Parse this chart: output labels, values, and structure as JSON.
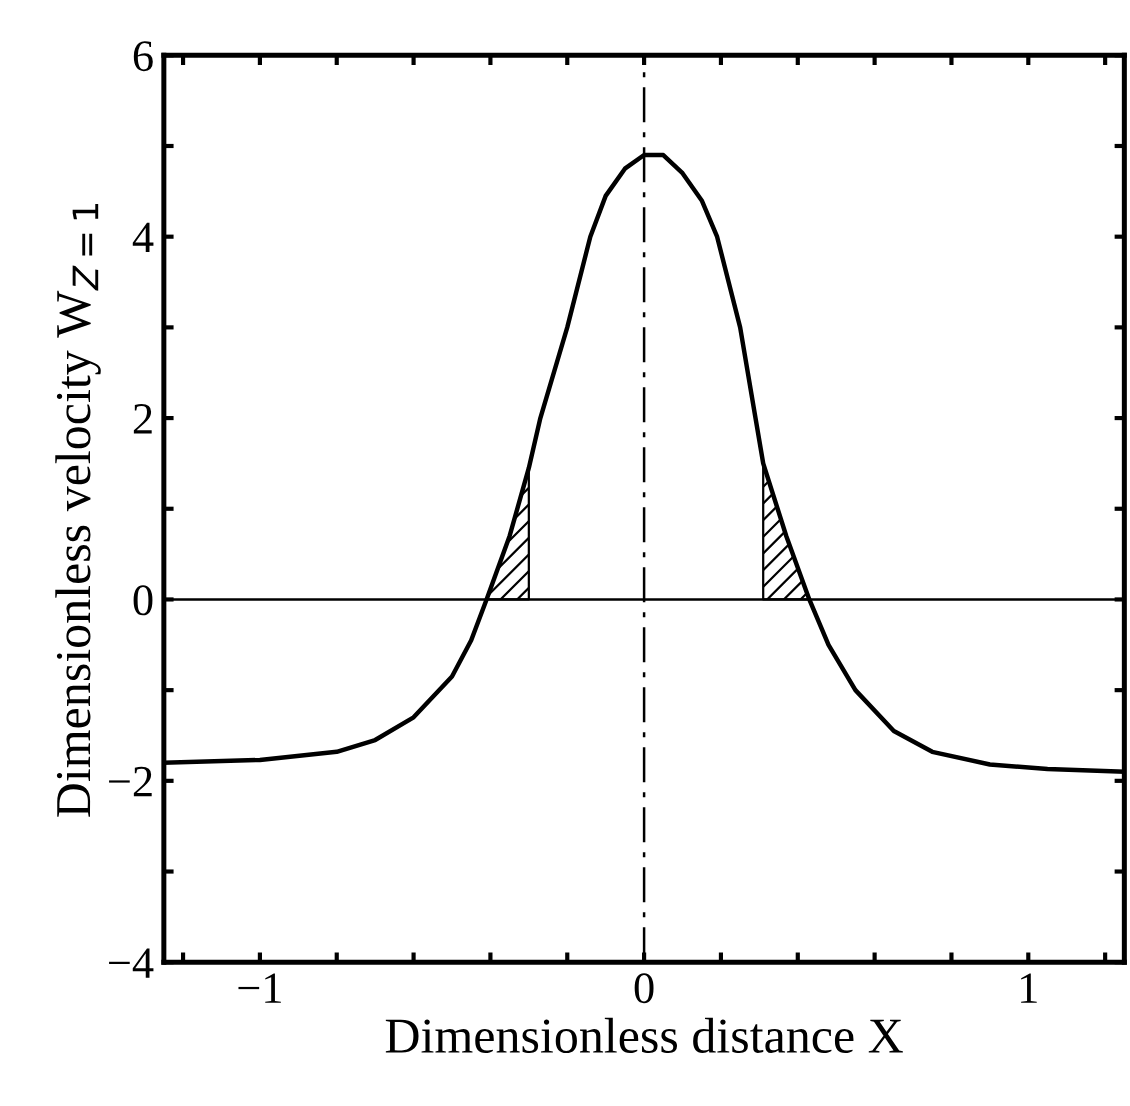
{
  "chart_data": {
    "type": "line",
    "xlabel": "Dimensionless distance X",
    "ylabel": "Dimensionless velocity W$_{Z=1}$",
    "xlim": [
      -1.25,
      1.25
    ],
    "ylim": [
      -4,
      6
    ],
    "xticks": [
      {
        "value": -1.2,
        "label": null
      },
      -1,
      {
        "value": -0.8,
        "label": null
      },
      {
        "value": -0.6,
        "label": null
      },
      {
        "value": -0.4,
        "label": null
      },
      {
        "value": -0.2,
        "label": null
      },
      0,
      {
        "value": 0.2,
        "label": null
      },
      {
        "value": 0.4,
        "label": null
      },
      {
        "value": 0.6,
        "label": null
      },
      {
        "value": 0.8,
        "label": null
      },
      1,
      {
        "value": 1.2,
        "label": null
      }
    ],
    "yticks": [
      -4,
      {
        "value": -3,
        "label": null
      },
      -2,
      {
        "value": -1,
        "label": null
      },
      0,
      {
        "value": 1,
        "label": null
      },
      2,
      {
        "value": 3,
        "label": null
      },
      4,
      {
        "value": 5,
        "label": null
      },
      6
    ],
    "grid": false,
    "series": [
      {
        "color": "#000000",
        "x": [
          -1.25,
          -1.0,
          -0.8,
          -0.7,
          -0.6,
          -0.5,
          -0.45,
          -0.41,
          -0.35,
          -0.3,
          -0.27,
          -0.2,
          -0.14,
          -0.1,
          -0.05,
          0.0,
          0.05,
          0.1,
          0.15,
          0.19,
          0.25,
          0.29,
          0.31,
          0.37,
          0.43,
          0.48,
          0.55,
          0.65,
          0.75,
          0.9,
          1.05,
          1.25
        ],
        "values": [
          -1.8,
          -1.77,
          -1.68,
          -1.55,
          -1.3,
          -0.85,
          -0.45,
          0,
          0.7,
          1.45,
          2.0,
          3.0,
          4.0,
          4.45,
          4.75,
          4.9,
          4.9,
          4.7,
          4.4,
          4.0,
          3.0,
          2.0,
          1.5,
          0.7,
          0,
          -0.5,
          -1.0,
          -1.45,
          -1.68,
          -1.82,
          -1.87,
          -1.9
        ]
      },
      {
        "type": "area",
        "color": "#000000",
        "x": [
          -0.41,
          -0.35,
          -0.3
        ],
        "values": [
          0,
          0.7,
          1.45
        ]
      },
      {
        "type": "area",
        "color": "#000000",
        "x": [
          0.31,
          0.37,
          0.43
        ],
        "values": [
          1.5,
          0.7,
          0
        ]
      }
    ],
    "ref_lines": [
      {
        "axis": "y",
        "value": 0,
        "line_style": "solid"
      },
      {
        "axis": "x",
        "value": 0,
        "line_style": "dashdot"
      }
    ]
  }
}
